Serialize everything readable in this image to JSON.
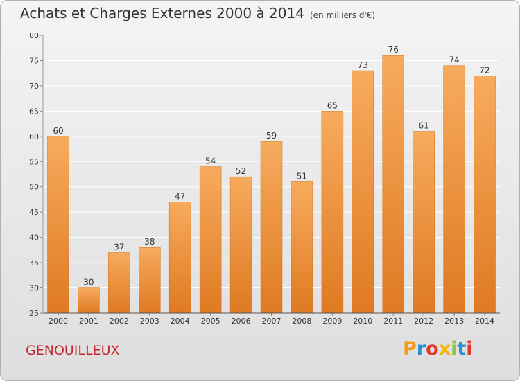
{
  "title": "Achats et Charges Externes 2000 à 2014",
  "subtitle": "(en milliers d'€)",
  "commune": "GENOUILLEUX",
  "logo": {
    "letters": [
      "P",
      "r",
      "o",
      "x",
      "i",
      "t",
      "i"
    ],
    "colors": [
      "#f39a1e",
      "#2a8fd3",
      "#e0382c",
      "#f2b600",
      "#8cc63f",
      "#2a8fd3",
      "#e0382c"
    ]
  },
  "colors": {
    "bar_light": "#f7a95a",
    "bar_dark": "#e07a20",
    "grid": "#ffffff"
  },
  "chart_data": {
    "type": "bar",
    "categories": [
      "2000",
      "2001",
      "2002",
      "2003",
      "2004",
      "2005",
      "2006",
      "2007",
      "2008",
      "2009",
      "2010",
      "2011",
      "2012",
      "2013",
      "2014"
    ],
    "values": [
      60,
      30,
      37,
      38,
      47,
      54,
      52,
      59,
      51,
      65,
      73,
      76,
      61,
      74,
      72
    ],
    "ylim": [
      25,
      80
    ],
    "yticks": [
      25,
      30,
      35,
      40,
      45,
      50,
      55,
      60,
      65,
      70,
      75,
      80
    ],
    "grid": true
  }
}
